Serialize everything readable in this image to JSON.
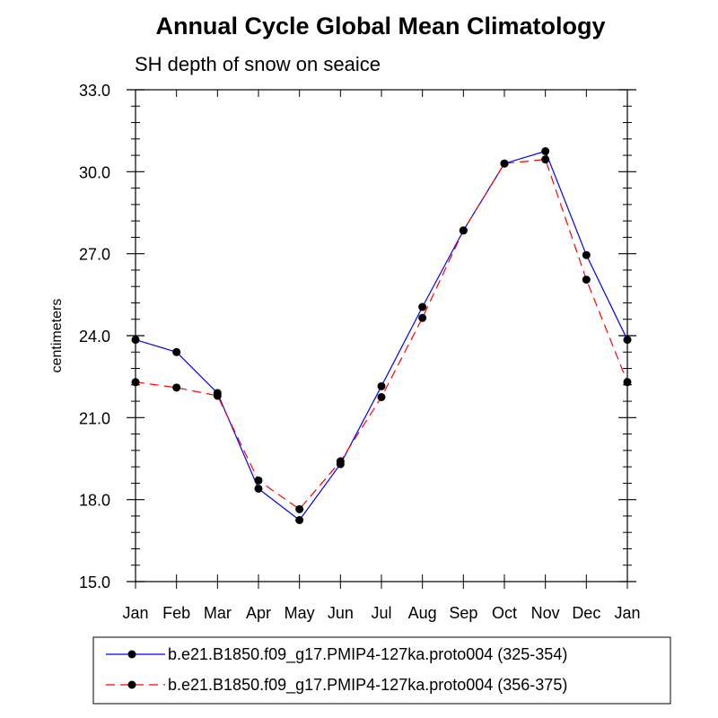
{
  "chart_data": {
    "type": "line",
    "title": "Annual Cycle Global Mean Climatology",
    "subtitle": "SH depth of snow on seaice",
    "xlabel": "",
    "ylabel": "centimeters",
    "categories": [
      "Jan",
      "Feb",
      "Mar",
      "Apr",
      "May",
      "Jun",
      "Jul",
      "Aug",
      "Sep",
      "Oct",
      "Nov",
      "Dec",
      "Jan"
    ],
    "ylim": [
      15.0,
      33.0
    ],
    "yticks": [
      "15.0",
      "18.0",
      "21.0",
      "24.0",
      "27.0",
      "30.0",
      "33.0"
    ],
    "series": [
      {
        "name": "b.e21.B1850.f09_g17.PMIP4-127ka.proto004 (325-354)",
        "color": "#0000ff",
        "style": "solid",
        "values": [
          23.85,
          23.4,
          21.9,
          18.4,
          17.25,
          19.3,
          22.15,
          25.05,
          27.85,
          30.3,
          30.75,
          26.95,
          23.85
        ]
      },
      {
        "name": "b.e21.B1850.f09_g17.PMIP4-127ka.proto004 (356-375)",
        "color": "#ff0000",
        "style": "dashed",
        "values": [
          22.3,
          22.1,
          21.8,
          18.7,
          17.65,
          19.4,
          21.75,
          24.65,
          27.85,
          30.3,
          30.45,
          26.05,
          22.3
        ]
      }
    ],
    "legend_position": "bottom"
  }
}
